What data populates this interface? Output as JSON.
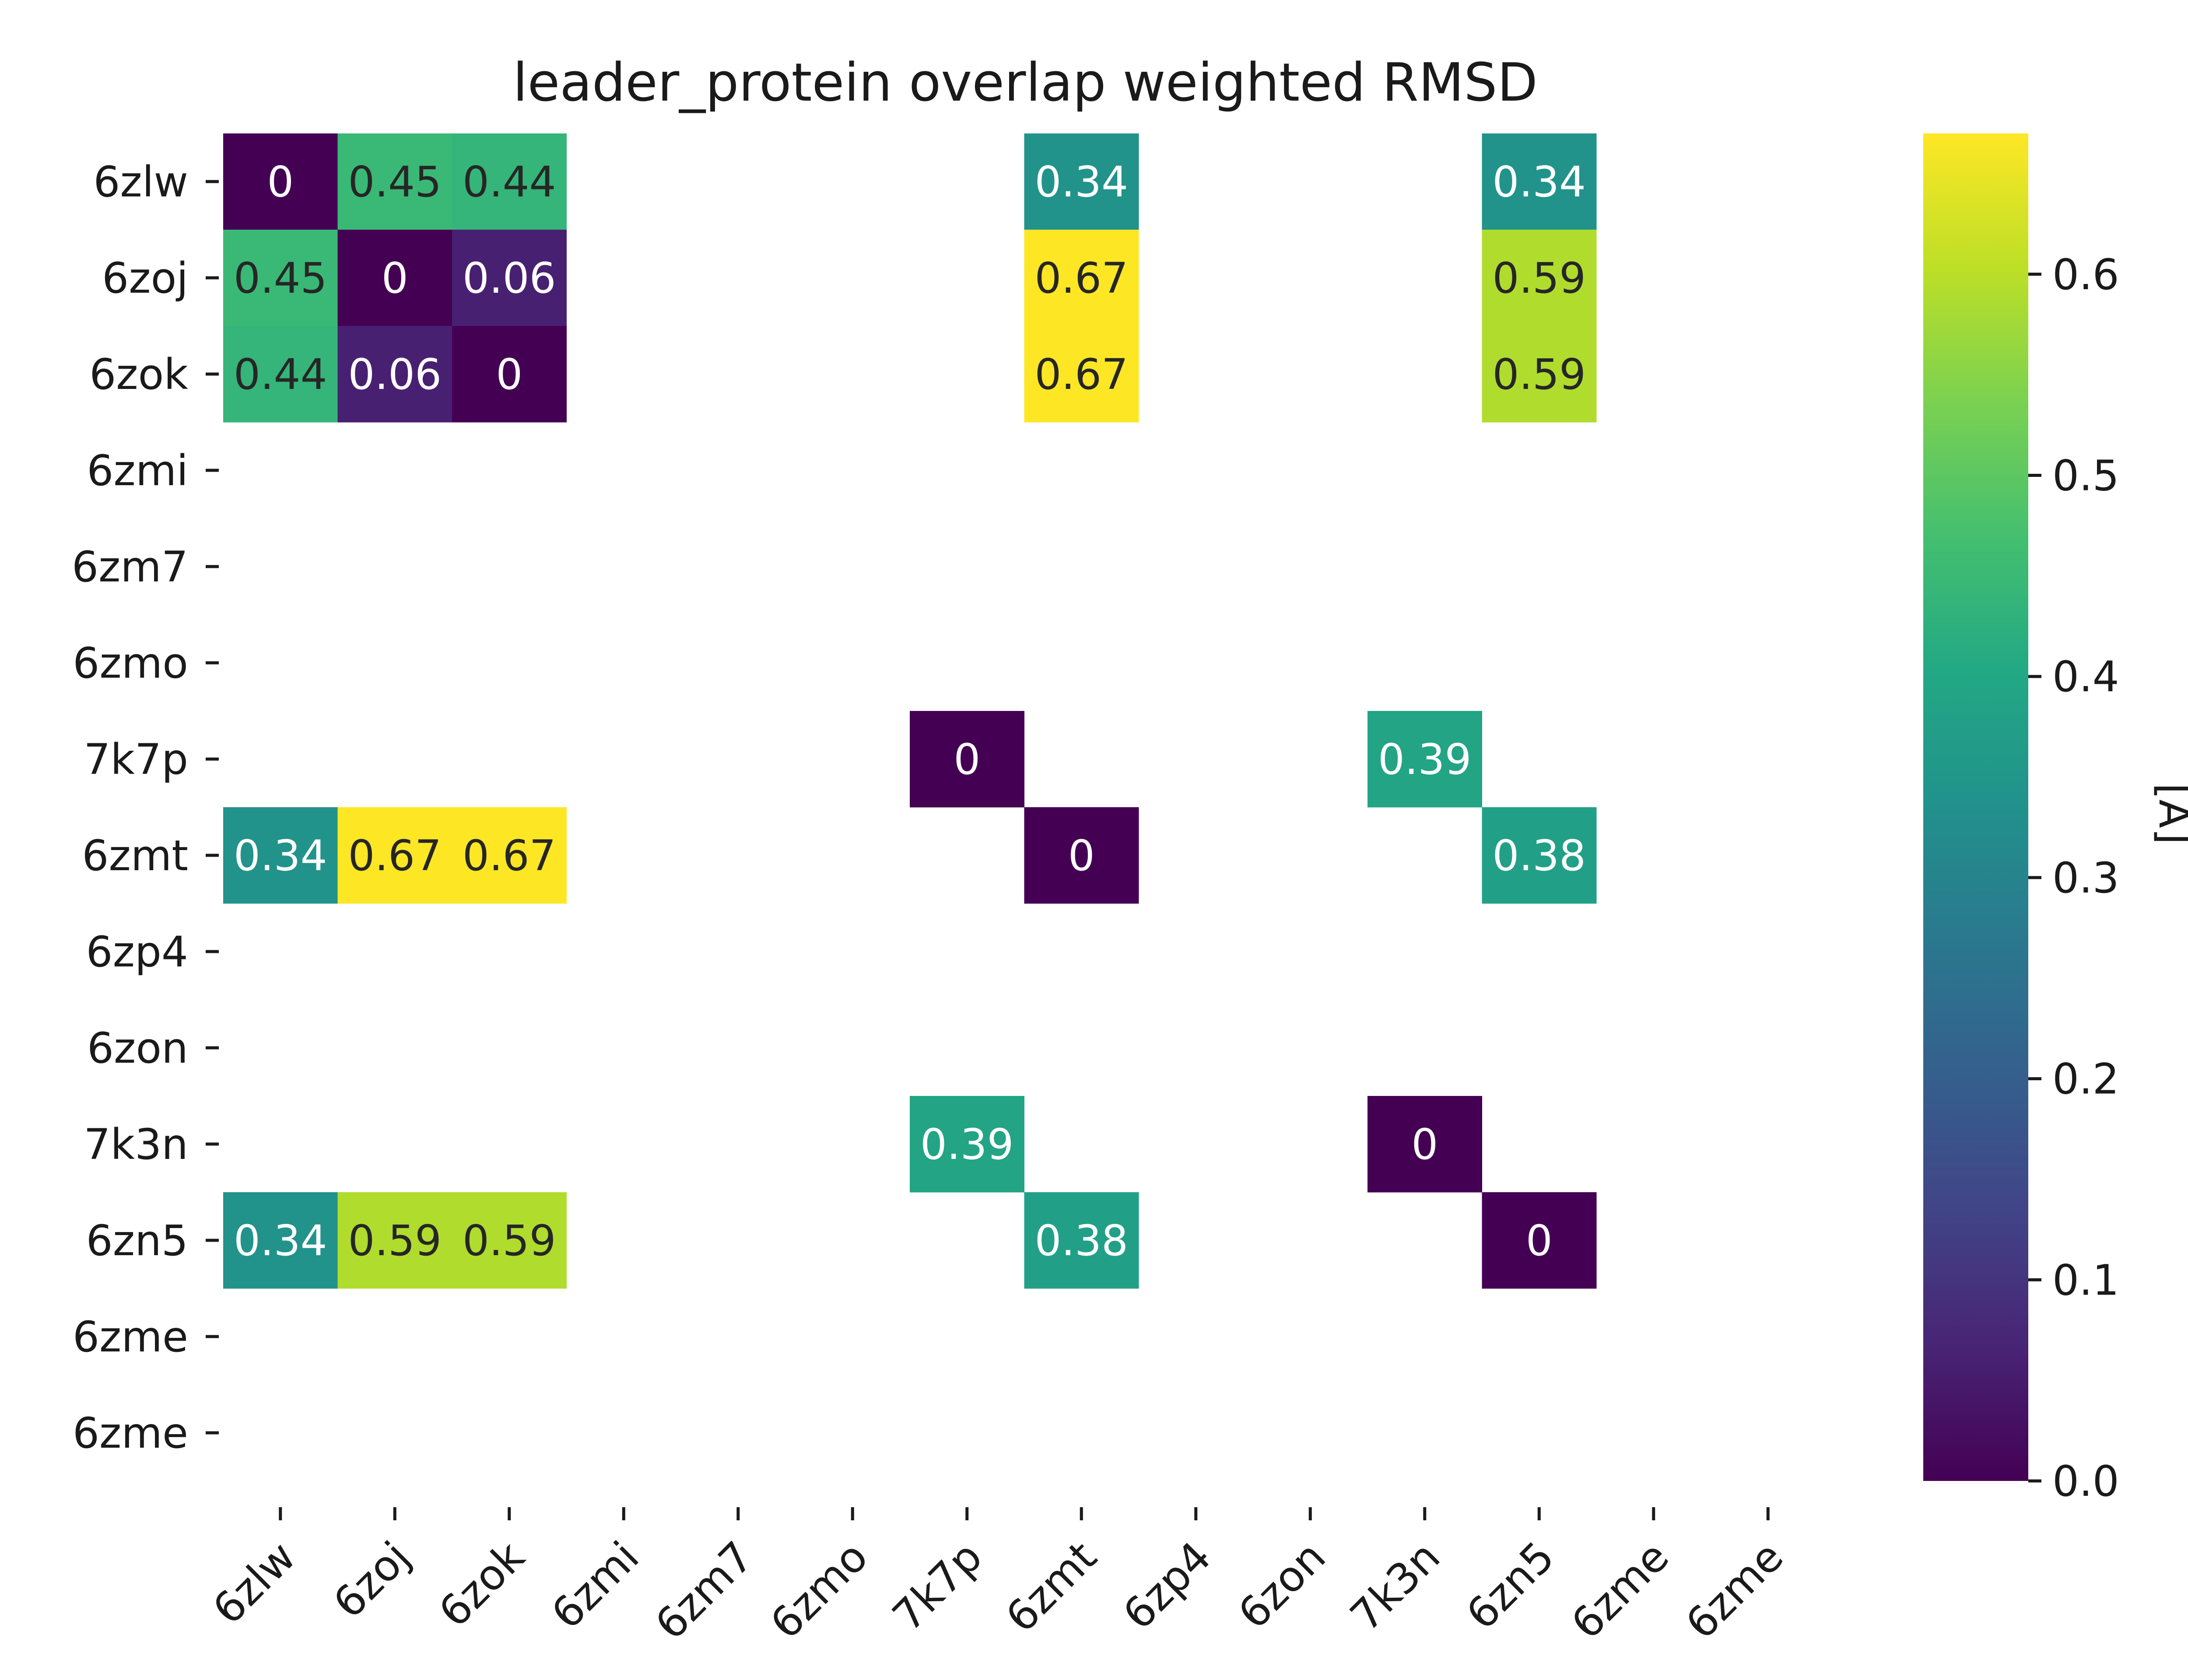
{
  "chart_data": {
    "type": "heatmap",
    "title": "leader_protein overlap weighted RMSD",
    "x_labels": [
      "6zlw",
      "6zoj",
      "6zok",
      "6zmi",
      "6zm7",
      "6zmo",
      "7k7p",
      "6zmt",
      "6zp4",
      "6zon",
      "7k3n",
      "6zn5",
      "6zme",
      "6zme"
    ],
    "y_labels": [
      "6zlw",
      "6zoj",
      "6zok",
      "6zmi",
      "6zm7",
      "6zmo",
      "7k7p",
      "6zmt",
      "6zp4",
      "6zon",
      "7k3n",
      "6zn5",
      "6zme",
      "6zme"
    ],
    "values": [
      [
        0,
        0.45,
        0.44,
        null,
        null,
        null,
        null,
        0.34,
        null,
        null,
        null,
        0.34,
        null,
        null
      ],
      [
        0.45,
        0,
        0.06,
        null,
        null,
        null,
        null,
        0.67,
        null,
        null,
        null,
        0.59,
        null,
        null
      ],
      [
        0.44,
        0.06,
        0,
        null,
        null,
        null,
        null,
        0.67,
        null,
        null,
        null,
        0.59,
        null,
        null
      ],
      [
        null,
        null,
        null,
        null,
        null,
        null,
        null,
        null,
        null,
        null,
        null,
        null,
        null,
        null
      ],
      [
        null,
        null,
        null,
        null,
        null,
        null,
        null,
        null,
        null,
        null,
        null,
        null,
        null,
        null
      ],
      [
        null,
        null,
        null,
        null,
        null,
        null,
        null,
        null,
        null,
        null,
        null,
        null,
        null,
        null
      ],
      [
        null,
        null,
        null,
        null,
        null,
        null,
        0,
        null,
        null,
        null,
        0.39,
        null,
        null,
        null
      ],
      [
        0.34,
        0.67,
        0.67,
        null,
        null,
        null,
        null,
        0,
        null,
        null,
        null,
        0.38,
        null,
        null
      ],
      [
        null,
        null,
        null,
        null,
        null,
        null,
        null,
        null,
        null,
        null,
        null,
        null,
        null,
        null
      ],
      [
        null,
        null,
        null,
        null,
        null,
        null,
        null,
        null,
        null,
        null,
        null,
        null,
        null,
        null
      ],
      [
        null,
        null,
        null,
        null,
        null,
        null,
        0.39,
        null,
        null,
        null,
        0,
        null,
        null,
        null
      ],
      [
        0.34,
        0.59,
        0.59,
        null,
        null,
        null,
        null,
        0.38,
        null,
        null,
        null,
        0,
        null,
        null
      ],
      [
        null,
        null,
        null,
        null,
        null,
        null,
        null,
        null,
        null,
        null,
        null,
        null,
        null,
        null
      ],
      [
        null,
        null,
        null,
        null,
        null,
        null,
        null,
        null,
        null,
        null,
        null,
        null,
        null,
        null
      ]
    ],
    "colormap": "viridis",
    "vmin": 0,
    "vmax": 0.67,
    "colorbar": {
      "label": "[Å]",
      "ticks": [
        0.0,
        0.1,
        0.2,
        0.3,
        0.4,
        0.5,
        0.6
      ],
      "tick_labels": [
        "0.0",
        "0.1",
        "0.2",
        "0.3",
        "0.4",
        "0.5",
        "0.6"
      ],
      "placement": "right"
    },
    "grid": false
  }
}
